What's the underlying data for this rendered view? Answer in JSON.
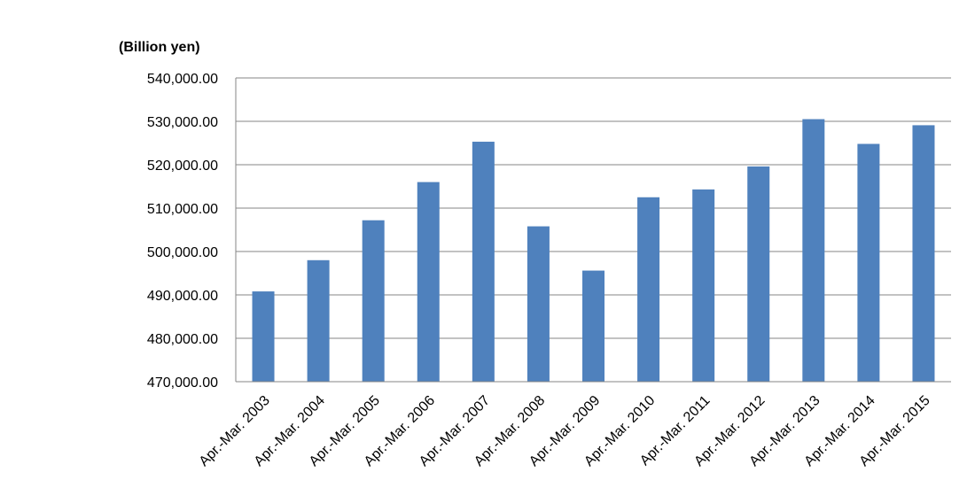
{
  "chart_data": {
    "type": "bar",
    "unit_label": "(Billion yen)",
    "title": "",
    "xlabel": "",
    "ylabel": "",
    "ylim": [
      470000,
      540000
    ],
    "yticks": [
      "470,000.00",
      "480,000.00",
      "490,000.00",
      "500,000.00",
      "510,000.00",
      "520,000.00",
      "530,000.00",
      "540,000.00"
    ],
    "ytick_values": [
      470000,
      480000,
      490000,
      500000,
      510000,
      520000,
      530000,
      540000
    ],
    "categories": [
      "Apr.-Mar. 2003",
      "Apr.-Mar. 2004",
      "Apr.-Mar. 2005",
      "Apr.-Mar. 2006",
      "Apr.-Mar. 2007",
      "Apr.-Mar. 2008",
      "Apr.-Mar. 2009",
      "Apr.-Mar. 2010",
      "Apr.-Mar. 2011",
      "Apr.-Mar. 2012",
      "Apr.-Mar. 2013",
      "Apr.-Mar. 2014",
      "Apr.-Mar. 2015"
    ],
    "values": [
      490800,
      498000,
      507200,
      516000,
      525300,
      505800,
      495600,
      512500,
      514300,
      519600,
      530500,
      524800,
      529100
    ],
    "grid": true,
    "legend": "none",
    "bar_color": "#4F81BD",
    "grid_color": "#868686"
  }
}
